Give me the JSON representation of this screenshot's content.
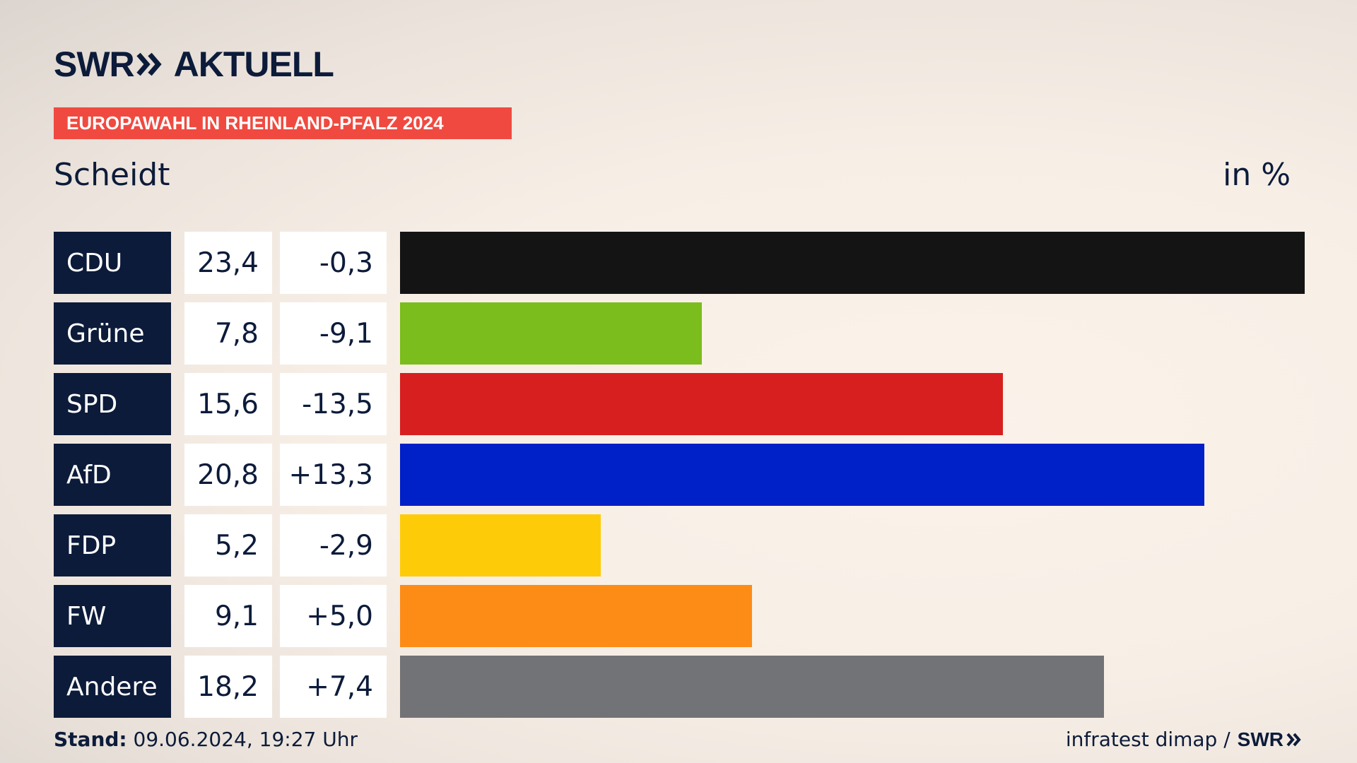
{
  "header": {
    "logo_text": "SWR",
    "logo_suffix": "AKTUELL",
    "banner": "EUROPAWAHL IN RHEINLAND-PFALZ 2024",
    "subtitle": "Scheidt",
    "unit": "in %"
  },
  "colors": {
    "navy": "#0c1b3a",
    "banner": "#f04a40"
  },
  "chart_data": {
    "type": "bar",
    "orientation": "horizontal",
    "title": "EUROPAWAHL IN RHEINLAND-PFALZ 2024",
    "subtitle": "Scheidt",
    "unit": "in %",
    "categories": [
      "CDU",
      "Grüne",
      "SPD",
      "AfD",
      "FDP",
      "FW",
      "Andere"
    ],
    "values": [
      23.4,
      7.8,
      15.6,
      20.8,
      5.2,
      9.1,
      18.2
    ],
    "value_labels": [
      "23,4",
      "7,8",
      "15,6",
      "20,8",
      "5,2",
      "9,1",
      "18,2"
    ],
    "diff_labels": [
      "-0,3",
      "-9,1",
      "-13,5",
      "+13,3",
      "-2,9",
      "+5,0",
      "+7,4"
    ],
    "colors": [
      "#141414",
      "#7bbd1c",
      "#d71f1f",
      "#0020c8",
      "#fecb08",
      "#fd8c16",
      "#727376"
    ],
    "xlim": [
      0,
      23.4
    ]
  },
  "footer": {
    "stand_label": "Stand:",
    "stand_value": " 09.06.2024, 19:27 Uhr",
    "source": "infratest dimap /",
    "source_logo": "SWR"
  }
}
